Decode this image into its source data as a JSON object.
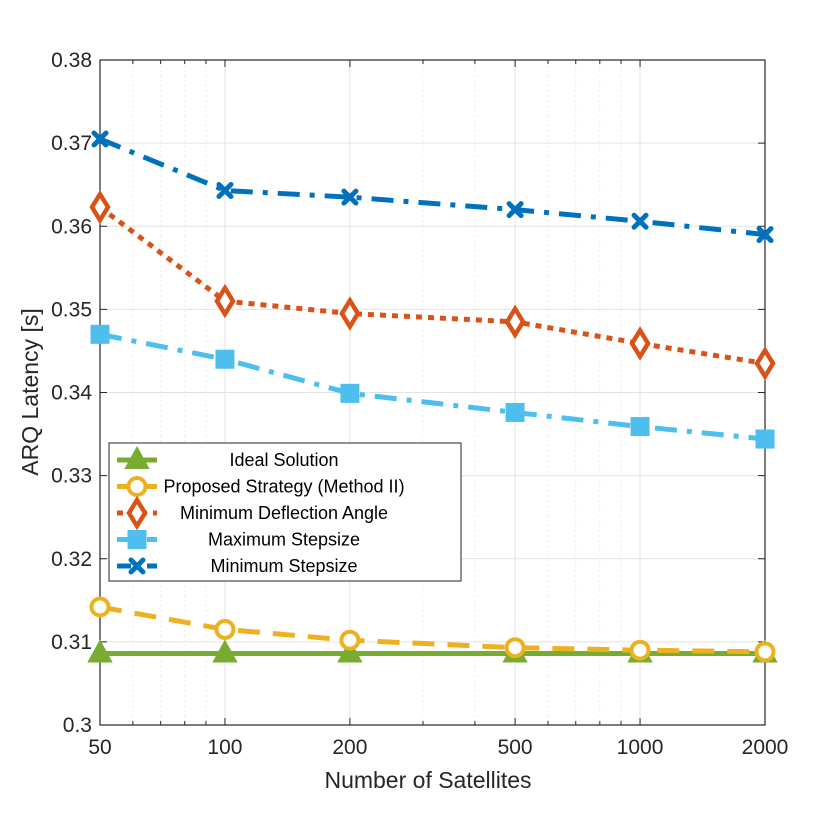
{
  "chart_data": {
    "type": "line",
    "title": "",
    "xlabel": "Number of Satellites",
    "ylabel": "ARQ Latency [s]",
    "xscale": "log",
    "xlim": [
      50,
      2000
    ],
    "ylim": [
      0.3,
      0.38
    ],
    "grid": true,
    "x": [
      50,
      100,
      200,
      500,
      1000,
      2000
    ],
    "x_tick_labels": [
      "50",
      "100",
      "200",
      "500",
      "1000",
      "2000"
    ],
    "y_ticks": [
      0.3,
      0.31,
      0.32,
      0.33,
      0.34,
      0.35,
      0.36,
      0.37,
      0.38
    ],
    "y_tick_labels": [
      "0.3",
      "0.31",
      "0.32",
      "0.33",
      "0.34",
      "0.35",
      "0.36",
      "0.37",
      "0.38"
    ],
    "legend_position": "lower-left",
    "series": [
      {
        "key": "ideal",
        "name": "Ideal Solution",
        "color": "#77AC30",
        "line": "solid",
        "marker": "triangle",
        "values": [
          0.3086,
          0.3086,
          0.3086,
          0.3086,
          0.3086,
          0.3086
        ]
      },
      {
        "key": "proposed",
        "name": "Proposed Strategy (Method II)",
        "color": "#EDB120",
        "line": "dashed",
        "marker": "circle",
        "values": [
          0.3142,
          0.3115,
          0.3102,
          0.3093,
          0.309,
          0.3088
        ]
      },
      {
        "key": "mindeflect",
        "name": "Minimum Deflection Angle",
        "color": "#D95319",
        "line": "dotted",
        "marker": "diamond",
        "values": [
          0.3623,
          0.351,
          0.3495,
          0.3485,
          0.3459,
          0.3435
        ]
      },
      {
        "key": "maxstep",
        "name": "Maximum Stepsize",
        "color": "#4DBEEE",
        "line": "dashdot",
        "marker": "square",
        "values": [
          0.347,
          0.344,
          0.3399,
          0.3376,
          0.3359,
          0.3344
        ]
      },
      {
        "key": "minstep",
        "name": "Minimum Stepsize",
        "color": "#0072BD",
        "line": "dashdot",
        "marker": "x",
        "values": [
          0.3705,
          0.3643,
          0.3635,
          0.362,
          0.3606,
          0.359
        ]
      }
    ]
  }
}
